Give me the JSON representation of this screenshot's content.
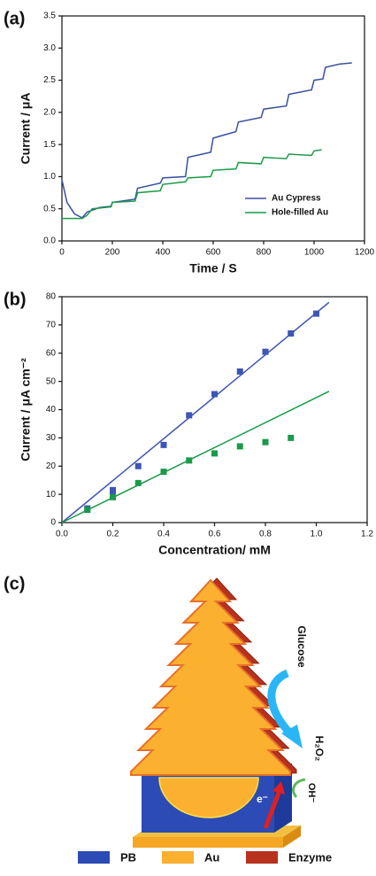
{
  "chart_data": [
    {
      "type": "line",
      "label": "(a)",
      "x_label": "Time / S",
      "y_label": "Current / μA",
      "xlim": [
        0,
        1200
      ],
      "xticks": [
        0,
        200,
        400,
        600,
        800,
        1000,
        1200
      ],
      "ylim": [
        0,
        3.5
      ],
      "yticks": [
        {
          "value": 0,
          "label": "0.0"
        },
        0.5,
        {
          "value": 1,
          "label": "1.0"
        },
        1.5,
        {
          "value": 2,
          "label": "2.0"
        },
        2.5,
        {
          "value": 3,
          "label": "3.0"
        },
        3.5
      ],
      "legend": "lower right",
      "series": [
        {
          "name": "Au Cypress",
          "color": "#3a4fa0",
          "x": [
            0,
            20,
            50,
            80,
            100,
            150,
            195,
            200,
            290,
            300,
            390,
            400,
            490,
            500,
            590,
            600,
            690,
            700,
            790,
            800,
            890,
            900,
            990,
            1000,
            1035,
            1045,
            1100,
            1150
          ],
          "values": [
            0.95,
            0.6,
            0.42,
            0.36,
            0.45,
            0.52,
            0.54,
            0.6,
            0.65,
            0.82,
            0.9,
            0.98,
            1.0,
            1.3,
            1.38,
            1.6,
            1.7,
            1.85,
            1.92,
            2.05,
            2.1,
            2.28,
            2.35,
            2.5,
            2.52,
            2.7,
            2.75,
            2.77
          ]
        },
        {
          "name": "Hole-filled Au",
          "color": "#1a9a4a",
          "x": [
            0,
            80,
            100,
            120,
            195,
            200,
            290,
            300,
            390,
            400,
            490,
            500,
            590,
            600,
            690,
            700,
            790,
            800,
            890,
            900,
            990,
            1000,
            1030
          ],
          "values": [
            0.35,
            0.35,
            0.4,
            0.5,
            0.53,
            0.6,
            0.62,
            0.75,
            0.78,
            0.88,
            0.92,
            0.98,
            1.0,
            1.1,
            1.12,
            1.22,
            1.2,
            1.3,
            1.28,
            1.35,
            1.33,
            1.4,
            1.42
          ]
        }
      ]
    },
    {
      "type": "scatter",
      "label": "(b)",
      "x_label": "Concentration/ mM",
      "y_label": "Current / μA cm⁻²",
      "xlim": [
        0,
        1.2
      ],
      "xticks": [
        {
          "value": 0,
          "label": "0.0"
        },
        0.2,
        0.4,
        0.6,
        0.8,
        {
          "value": 1,
          "label": "1.0"
        },
        1.2
      ],
      "ylim": [
        0,
        80
      ],
      "yticks": [
        0,
        10,
        20,
        30,
        40,
        50,
        60,
        70,
        80
      ],
      "series": [
        {
          "color": "#3d55b5",
          "x": [
            0.1,
            0.2,
            0.2,
            0.3,
            0.4,
            0.5,
            0.6,
            0.7,
            0.8,
            0.9,
            1.0
          ],
          "values": [
            5,
            11.5,
            10,
            20,
            27.5,
            38,
            45.5,
            53.5,
            60.5,
            67,
            74
          ]
        },
        {
          "color": "#1a9a4a",
          "x": [
            0.1,
            0.2,
            0.3,
            0.4,
            0.5,
            0.6,
            0.7,
            0.8,
            0.9
          ],
          "values": [
            4.5,
            9,
            14,
            18,
            22,
            24.5,
            27,
            28.5,
            30
          ]
        }
      ],
      "fits": [
        {
          "color": "#3d55b5",
          "x": [
            0,
            1.05
          ],
          "values": [
            0,
            78
          ]
        },
        {
          "color": "#1a9a4a",
          "x": [
            0,
            1.05
          ],
          "values": [
            0,
            46.5
          ]
        }
      ]
    }
  ],
  "diagram": {
    "label": "(c)",
    "glucose": "Glucose",
    "product": "H₂O₂",
    "ion": "OH⁻",
    "electron": "e⁻",
    "legend": [
      {
        "label": "PB",
        "color": "#2c4bb5"
      },
      {
        "label": "Au",
        "color": "#fbb030"
      },
      {
        "label": "Enzyme",
        "color": "#b8321e"
      }
    ]
  }
}
